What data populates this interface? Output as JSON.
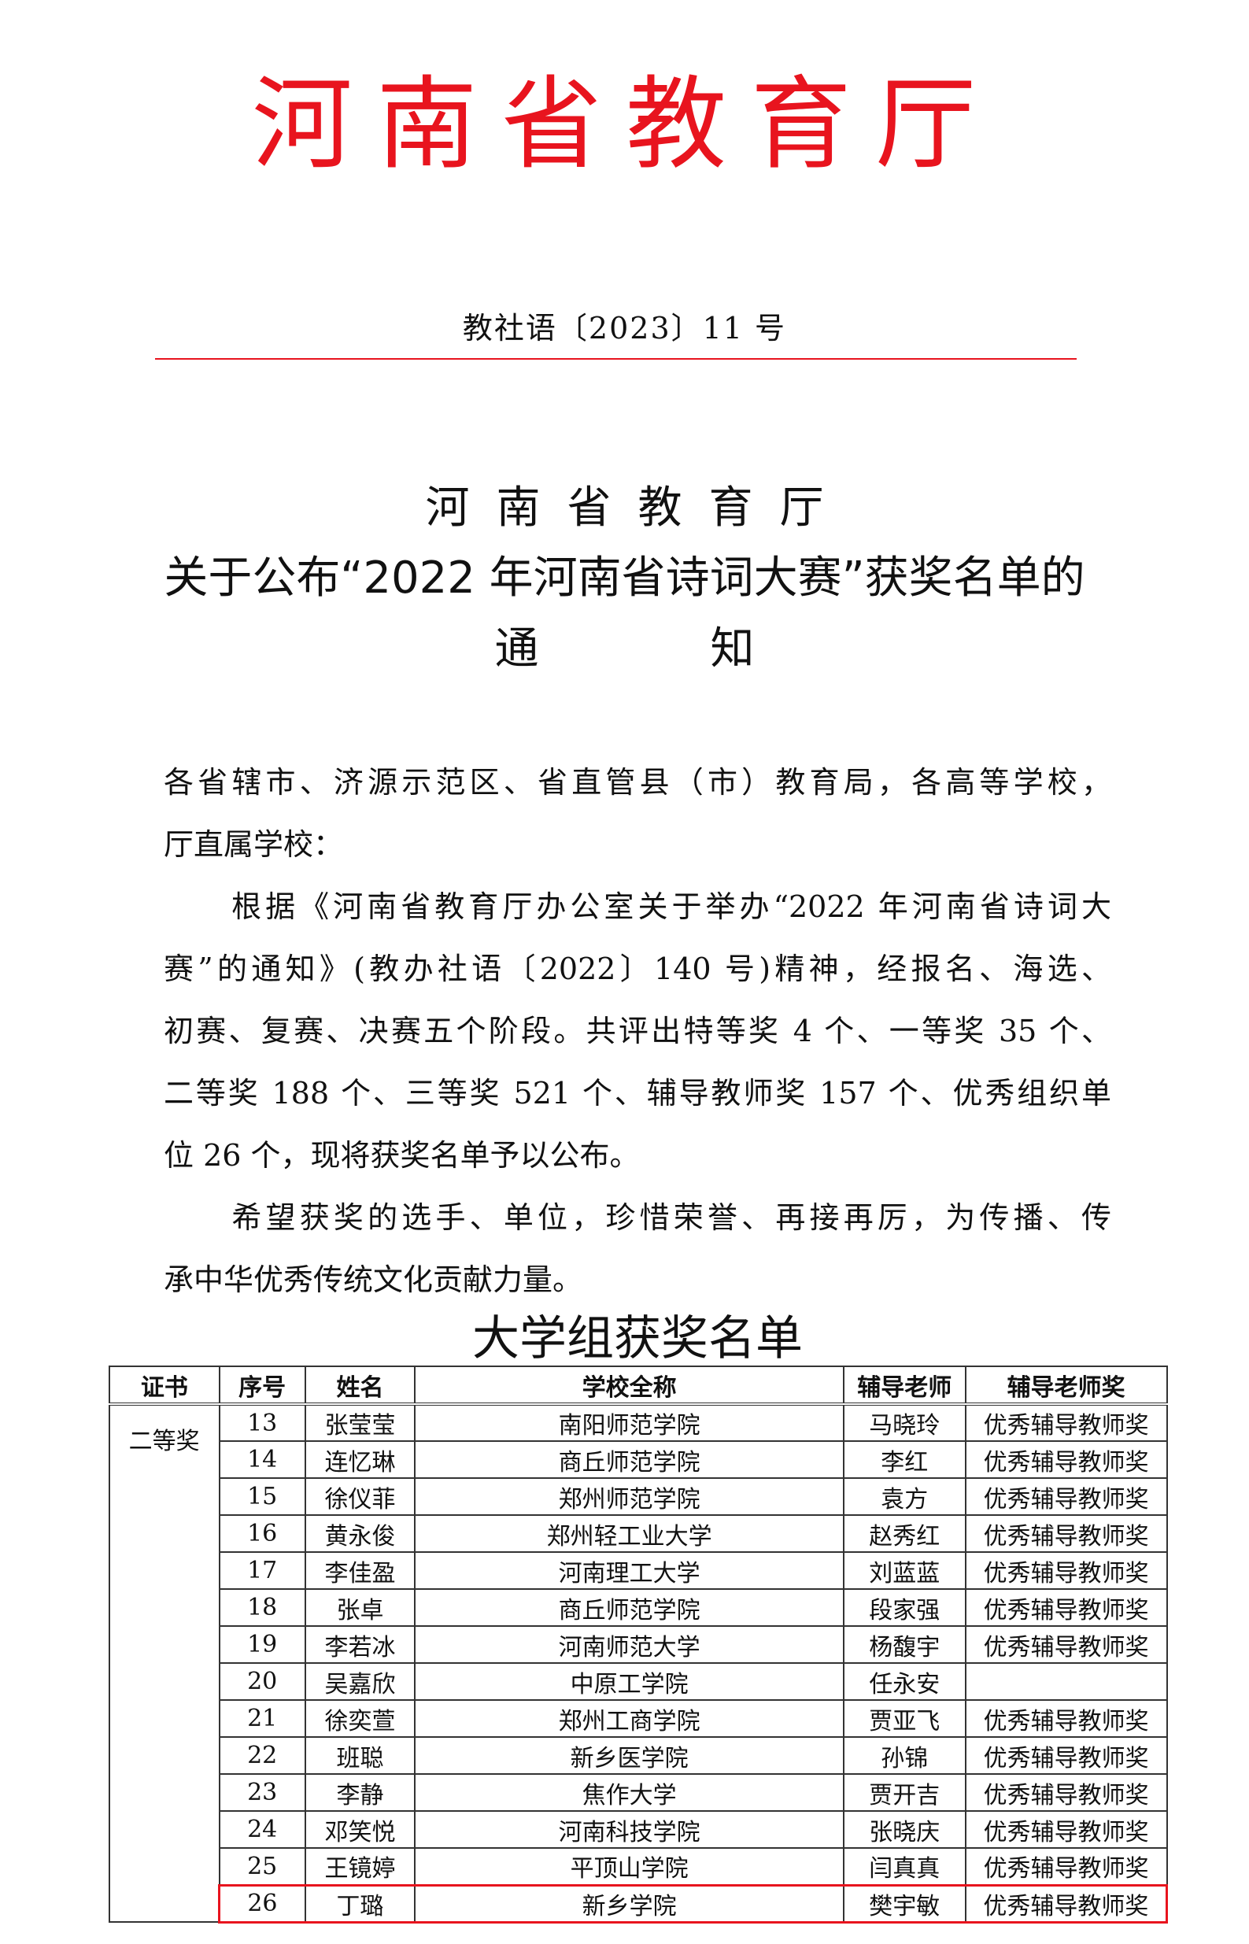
{
  "header": {
    "org_chars": [
      "河",
      "南",
      "省",
      "教",
      "育",
      "厅"
    ],
    "doc_number": "教社语〔2023〕11 号",
    "accent_color": "#e8141e"
  },
  "title": {
    "line1": "河南省教育厅",
    "line2": "关于公布“2022 年河南省诗词大赛”获奖名单的",
    "line3_parts": [
      "通",
      "知"
    ]
  },
  "body": {
    "lines": [
      "各省辖市、济源示范区、省直管县（市）教育局，各高等学校，",
      "厅直属学校：",
      "　　根据《河南省教育厅办公室关于举办“2022 年河南省诗词大",
      "赛”的通知》(教办社语〔2022〕140 号)精神，经报名、海选、",
      "初赛、复赛、决赛五个阶段。共评出特等奖 4 个、一等奖 35 个、",
      "二等奖 188 个、三等奖 521 个、辅导教师奖 157 个、优秀组织单",
      "位 26 个，现将获奖名单予以公布。",
      "　　希望获奖的选手、单位，珍惜荣誉、再接再厉，为传播、传",
      "承中华优秀传统文化贡献力量。"
    ]
  },
  "table": {
    "subtitle": "大学组获奖名单",
    "headers": [
      "证书",
      "序号",
      "姓名",
      "学校全称",
      "辅导老师",
      "辅导老师奖"
    ],
    "prize": "二等奖",
    "rows": [
      [
        "13",
        "张莹莹",
        "南阳师范学院",
        "马晓玲",
        "优秀辅导教师奖"
      ],
      [
        "14",
        "连忆琳",
        "商丘师范学院",
        "李红",
        "优秀辅导教师奖"
      ],
      [
        "15",
        "徐仪菲",
        "郑州师范学院",
        "袁方",
        "优秀辅导教师奖"
      ],
      [
        "16",
        "黄永俊",
        "郑州轻工业大学",
        "赵秀红",
        "优秀辅导教师奖"
      ],
      [
        "17",
        "李佳盈",
        "河南理工大学",
        "刘蓝蓝",
        "优秀辅导教师奖"
      ],
      [
        "18",
        "张卓",
        "商丘师范学院",
        "段家强",
        "优秀辅导教师奖"
      ],
      [
        "19",
        "李若冰",
        "河南师范大学",
        "杨馥宇",
        "优秀辅导教师奖"
      ],
      [
        "20",
        "吴嘉欣",
        "中原工学院",
        "任永安",
        ""
      ],
      [
        "21",
        "徐奕萱",
        "郑州工商学院",
        "贾亚飞",
        "优秀辅导教师奖"
      ],
      [
        "22",
        "班聪",
        "新乡医学院",
        "孙锦",
        "优秀辅导教师奖"
      ],
      [
        "23",
        "李静",
        "焦作大学",
        "贾开吉",
        "优秀辅导教师奖"
      ],
      [
        "24",
        "邓笑悦",
        "河南科技学院",
        "张晓庆",
        "优秀辅导教师奖"
      ],
      [
        "25",
        "王镜婷",
        "平顶山学院",
        "闫真真",
        "优秀辅导教师奖"
      ],
      [
        "26",
        "丁璐",
        "新乡学院",
        "樊宇敏",
        "优秀辅导教师奖"
      ]
    ],
    "highlighted_row": "26"
  }
}
